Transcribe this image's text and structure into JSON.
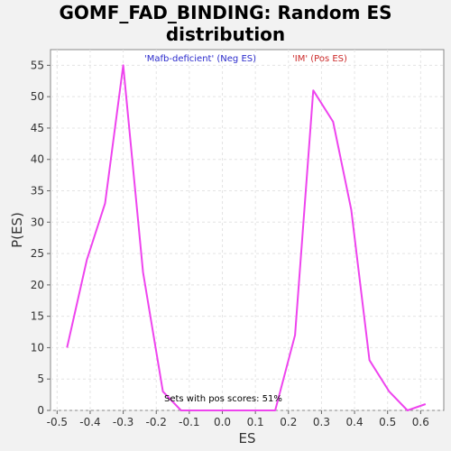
{
  "chart_data": {
    "type": "line",
    "title_line1": "GOMF_FAD_BINDING: Random ES",
    "title_line2": "distribution",
    "xlabel": "ES",
    "ylabel": "P(ES)",
    "xlim": [
      -0.52,
      0.67
    ],
    "ylim": [
      0,
      57.5
    ],
    "xticks": [
      "-0.5",
      "-0.4",
      "-0.3",
      "-0.2",
      "-0.1",
      "0.0",
      "0.1",
      "0.2",
      "0.3",
      "0.4",
      "0.5",
      "0.6"
    ],
    "xtick_values": [
      -0.5,
      -0.4,
      -0.3,
      -0.2,
      -0.1,
      0.0,
      0.1,
      0.2,
      0.3,
      0.4,
      0.5,
      0.6
    ],
    "yticks": [
      "0",
      "5",
      "10",
      "15",
      "20",
      "25",
      "30",
      "35",
      "40",
      "45",
      "50",
      "55"
    ],
    "ytick_values": [
      0,
      5,
      10,
      15,
      20,
      25,
      30,
      35,
      40,
      45,
      50,
      55
    ],
    "grid": true,
    "legend": [
      {
        "label": "'Mafb-deficient' (Neg ES)",
        "color": "#2a2acc",
        "position": "top-left"
      },
      {
        "label": "'IM' (Pos ES)",
        "color": "#cc2a2a",
        "position": "top-right"
      }
    ],
    "annotation": "Sets with pos scores: 51%",
    "series": [
      {
        "color": "#ee44ee",
        "x": [
          -0.47,
          -0.41,
          -0.355,
          -0.3,
          -0.24,
          -0.18,
          -0.125,
          -0.07,
          -0.015,
          0.04,
          0.1,
          0.16,
          0.22,
          0.275,
          0.335,
          0.39,
          0.445,
          0.505,
          0.56,
          0.615
        ],
        "y": [
          10,
          24,
          33,
          55,
          22,
          3,
          0,
          0,
          0,
          0,
          0,
          0,
          12,
          51,
          46,
          32,
          8,
          3,
          0,
          1
        ]
      }
    ]
  }
}
